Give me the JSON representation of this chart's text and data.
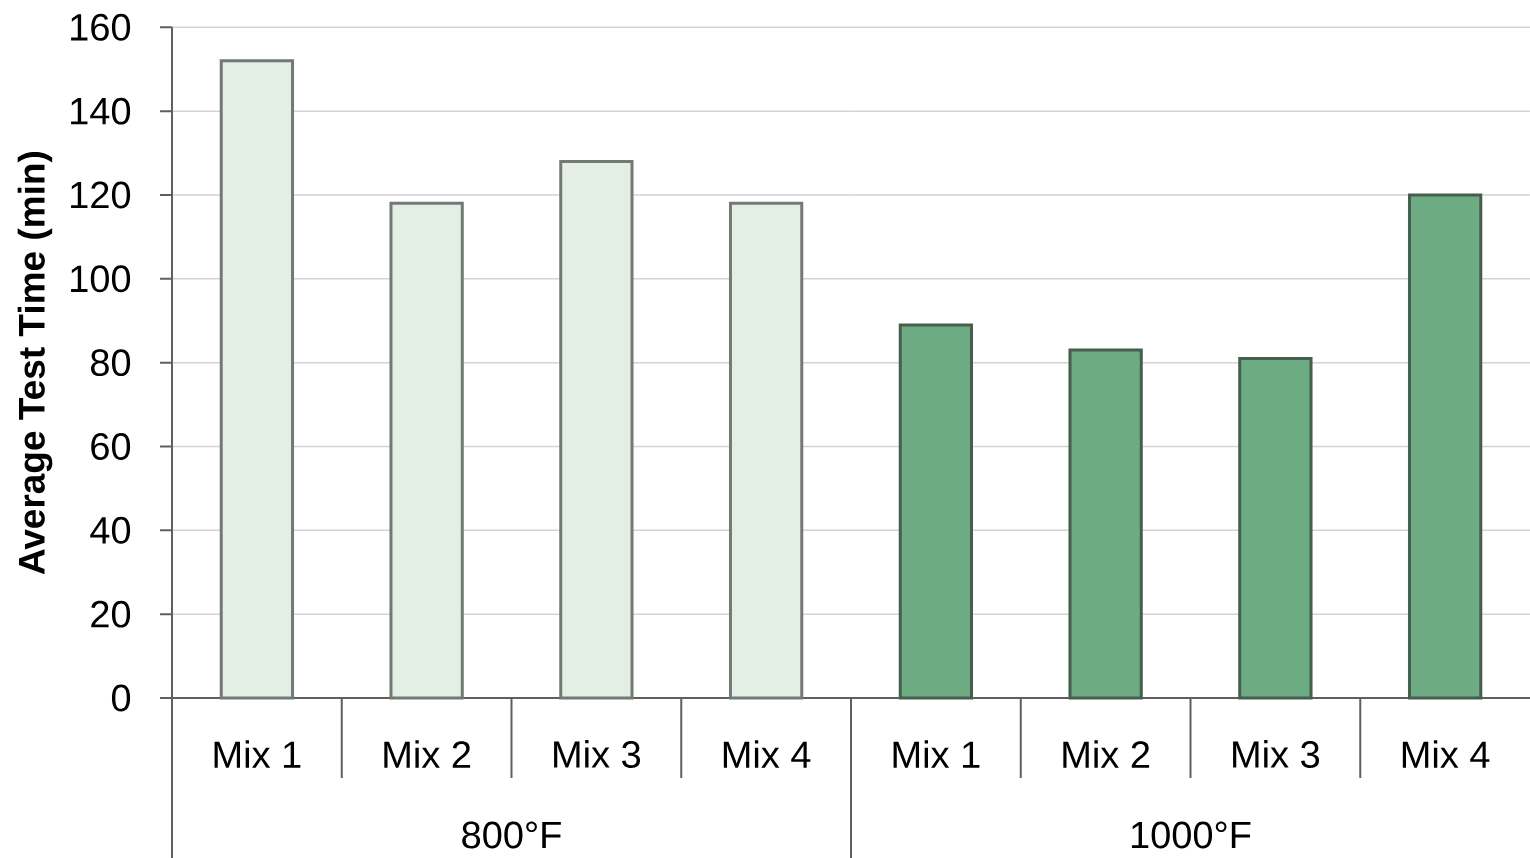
{
  "chart_data": [
    {
      "type": "bar",
      "ylabel": "Average Test Time (min)",
      "xlabel": "800°F",
      "categories": [
        "Mix 1",
        "Mix 2",
        "Mix 3",
        "Mix 4"
      ],
      "values": [
        152,
        118,
        128,
        118
      ],
      "color": "#e3eee4",
      "ylim": [
        0,
        160
      ],
      "yticks": [
        0,
        20,
        40,
        60,
        80,
        100,
        120,
        140,
        160
      ],
      "grid": "y"
    },
    {
      "type": "bar",
      "xlabel": "1000°F",
      "categories": [
        "Mix 1",
        "Mix 2",
        "Mix 3",
        "Mix 4"
      ],
      "values": [
        89,
        83,
        81,
        120
      ],
      "color": "#6dab82",
      "ylim": [
        0,
        160
      ],
      "yticks": [
        0,
        20,
        40,
        60,
        80,
        100,
        120,
        140,
        160
      ],
      "grid": "y",
      "tick_labels": "x"
    }
  ]
}
